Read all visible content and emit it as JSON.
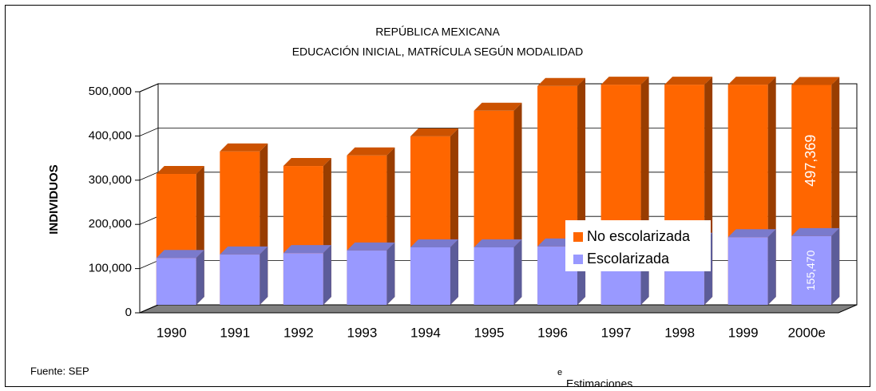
{
  "chart_data": {
    "type": "bar",
    "overlap": true,
    "title": "REPÚBLICA MEXICANA",
    "subtitle": "EDUCACIÓN INICIAL, MATRÍCULA SEGÚN MODALIDAD",
    "y_label": "INDIVIDUOS",
    "categories": [
      "1990",
      "1991",
      "1992",
      "1993",
      "1994",
      "1995",
      "1996",
      "1997",
      "1998",
      "1999",
      "2000e"
    ],
    "series": [
      {
        "name": "No escolarizada",
        "color": "#ff6600",
        "values": [
          296000,
          347000,
          314000,
          338000,
          381000,
          439000,
          495000,
          498000,
          498000,
          498000,
          497369
        ],
        "value_labels": [
          null,
          null,
          null,
          null,
          null,
          null,
          null,
          null,
          null,
          null,
          "497,369"
        ]
      },
      {
        "name": "Escolarizada",
        "color": "#9999ff",
        "values": [
          106000,
          114000,
          117000,
          123000,
          130000,
          130000,
          132000,
          140000,
          145000,
          153000,
          155470
        ],
        "value_labels": [
          null,
          null,
          null,
          null,
          null,
          null,
          null,
          null,
          null,
          null,
          "155,470"
        ]
      }
    ],
    "ylim": [
      0,
      500000
    ],
    "yticks": [
      {
        "value": 0,
        "label": "0"
      },
      {
        "value": 100000,
        "label": "100,000"
      },
      {
        "value": 200000,
        "label": "200,000"
      },
      {
        "value": 300000,
        "label": "300,000"
      },
      {
        "value": 400000,
        "label": "400,000"
      },
      {
        "value": 500000,
        "label": "500,000"
      }
    ],
    "grid": true,
    "source": "Fuente: SEP",
    "note_mark": "e",
    "note": "Estimaciones"
  }
}
